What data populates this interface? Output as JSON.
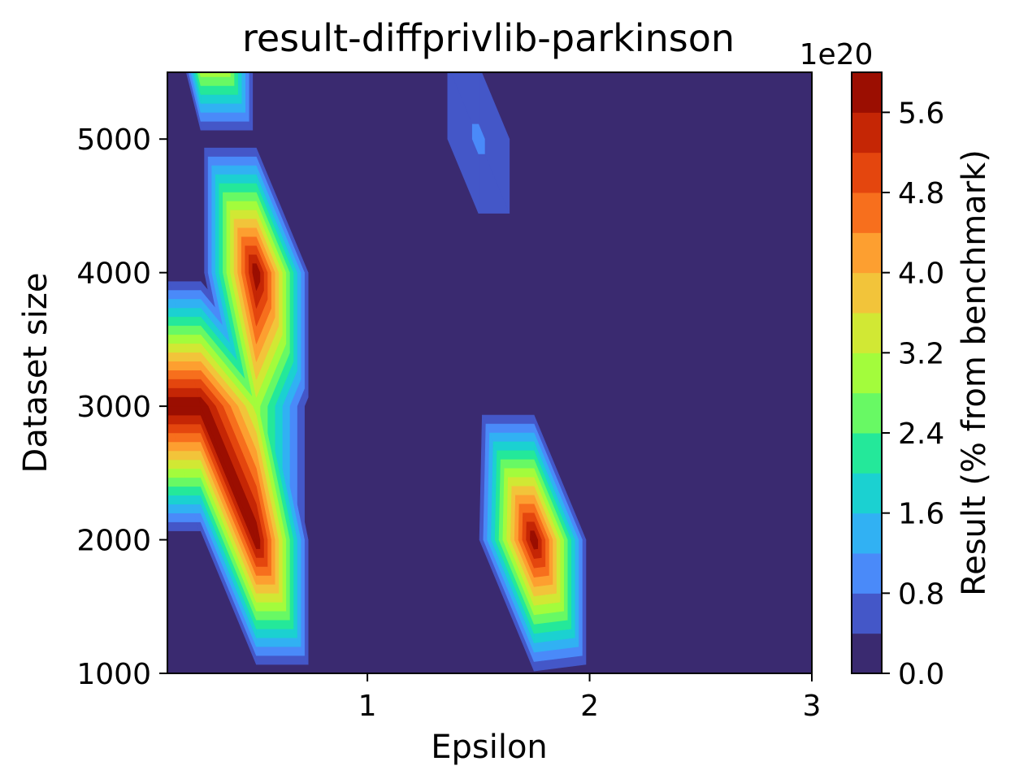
{
  "chart_data": {
    "type": "contour",
    "title": "result-diffprivlib-parkinson",
    "xlabel": "Epsilon",
    "ylabel": "Dataset size",
    "colorbar_label": "Result (% from benchmark)",
    "colorbar_offset": "1e20",
    "xlim": [
      0.1,
      3
    ],
    "ylim": [
      1000,
      5500
    ],
    "xticks": [
      1,
      2,
      3
    ],
    "yticks": [
      1000,
      2000,
      3000,
      4000,
      5000
    ],
    "colorbar_ticks": [
      "0.0",
      "0.8",
      "1.6",
      "2.4",
      "3.2",
      "4.0",
      "4.8",
      "5.6"
    ],
    "x": [
      0.1,
      0.25,
      0.5,
      0.75,
      1.0,
      1.25,
      1.5,
      1.75,
      2.0,
      2.25,
      2.5,
      2.75,
      3.0
    ],
    "y": [
      1000,
      2000,
      3000,
      4000,
      5000,
      6000
    ],
    "z_scale": "x 1e20",
    "z": [
      [
        0.0,
        0.0,
        0.0,
        0.0,
        0.0,
        0.0,
        0.3,
        0.3,
        0.0,
        0.0,
        0.0,
        0.0,
        0.0
      ],
      [
        0.0,
        0.0,
        6.0,
        0.0,
        0.0,
        0.0,
        0.3,
        6.0,
        0.0,
        0.0,
        0.0,
        0.0,
        0.0
      ],
      [
        6.0,
        6.0,
        3.0,
        0.0,
        0.0,
        0.0,
        0.0,
        0.0,
        0.0,
        0.0,
        0.0,
        0.0,
        0.0
      ],
      [
        0.0,
        0.0,
        6.0,
        0.0,
        0.0,
        0.0,
        0.0,
        0.0,
        0.0,
        0.0,
        0.0,
        0.0,
        0.0
      ],
      [
        0.0,
        0.0,
        0.0,
        0.0,
        0.0,
        0.0,
        0.9,
        0.0,
        0.0,
        0.0,
        0.0,
        0.0,
        0.0
      ],
      [
        0.0,
        6.0,
        0.0,
        0.0,
        0.0,
        0.0,
        0.0,
        0.0,
        0.0,
        0.0,
        0.0,
        0.0,
        0.0
      ]
    ],
    "levels": [
      0.0,
      0.4,
      0.8,
      1.2,
      1.6,
      2.0,
      2.4,
      2.8,
      3.2,
      3.6,
      4.0,
      4.4,
      4.8,
      5.2,
      5.6,
      6.0
    ],
    "colors": [
      "#3a2a70",
      "#4457c8",
      "#4a8af9",
      "#31b1f3",
      "#1bd1d1",
      "#24e89a",
      "#68f964",
      "#a3fc3c",
      "#d1e834",
      "#f2c43a",
      "#fd9f30",
      "#f76f1d",
      "#e4460e",
      "#c52605",
      "#9b0e01"
    ],
    "grid": false,
    "colorbar_position": "right"
  }
}
